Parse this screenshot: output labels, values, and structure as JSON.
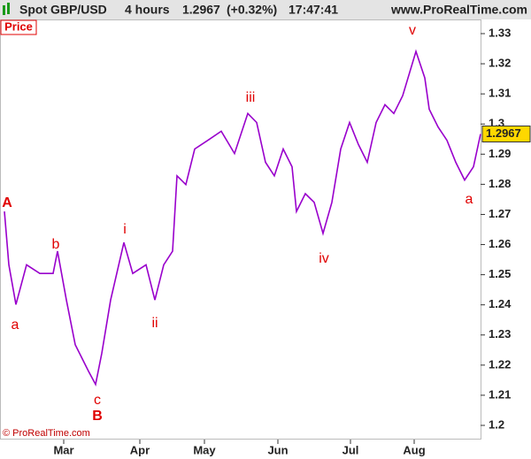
{
  "header": {
    "instrument": "Spot GBP/USD",
    "timeframe": "4 hours",
    "price": "1.2967",
    "change": "(+0.32%)",
    "time": "17:47:41",
    "site": "www.ProRealTime.com"
  },
  "chart_data": {
    "type": "line",
    "panel_label": "Price",
    "copyright": "© ProRealTime.com",
    "color": "#9900cc",
    "x": [
      1,
      2,
      3.6,
      6,
      9,
      12,
      13,
      15,
      17,
      20,
      21.6,
      23,
      25,
      28,
      30,
      33,
      35,
      37,
      39,
      40,
      42,
      44,
      47,
      50,
      53,
      56,
      58,
      60,
      62,
      64,
      66,
      67,
      69,
      71,
      73,
      75,
      77,
      79,
      81,
      83,
      85,
      87,
      89,
      91,
      94,
      96,
      97,
      99,
      101,
      103,
      105,
      107,
      108.6
    ],
    "values": [
      1.271,
      1.2533,
      1.2401,
      1.2533,
      1.2504,
      1.2504,
      1.2578,
      1.2416,
      1.2268,
      1.218,
      1.2136,
      1.2239,
      1.2416,
      1.2607,
      1.2504,
      1.2533,
      1.2416,
      1.2533,
      1.2578,
      1.2828,
      1.2799,
      1.2917,
      1.2946,
      1.2976,
      1.2902,
      1.3035,
      1.3005,
      1.2873,
      1.2828,
      1.2917,
      1.2858,
      1.271,
      1.2769,
      1.274,
      1.2637,
      1.274,
      1.2917,
      1.3005,
      1.2932,
      1.2873,
      1.3005,
      1.3064,
      1.3035,
      1.3094,
      1.3241,
      1.3153,
      1.3049,
      1.299,
      1.2946,
      1.2873,
      1.2814,
      1.2858,
      1.2967
    ],
    "last_price": "1.2967",
    "xlim": [
      0,
      108.6
    ],
    "xticks": [
      {
        "value": 14.4,
        "label": "Mar"
      },
      {
        "value": 31.6,
        "label": "Apr"
      },
      {
        "value": 46.2,
        "label": "May"
      },
      {
        "value": 62.8,
        "label": "Jun"
      },
      {
        "value": 79.2,
        "label": "Jul"
      },
      {
        "value": 93.6,
        "label": "Aug"
      }
    ],
    "ylim": [
      1.1953,
      1.3347
    ],
    "yticks": [
      1.2,
      1.21,
      1.22,
      1.23,
      1.24,
      1.25,
      1.26,
      1.27,
      1.28,
      1.29,
      1.3,
      1.31,
      1.32,
      1.33
    ],
    "annotations": [
      "A",
      "a",
      "b",
      "c",
      "B",
      "i",
      "ii",
      "iii",
      "iv",
      "v",
      "a"
    ]
  }
}
